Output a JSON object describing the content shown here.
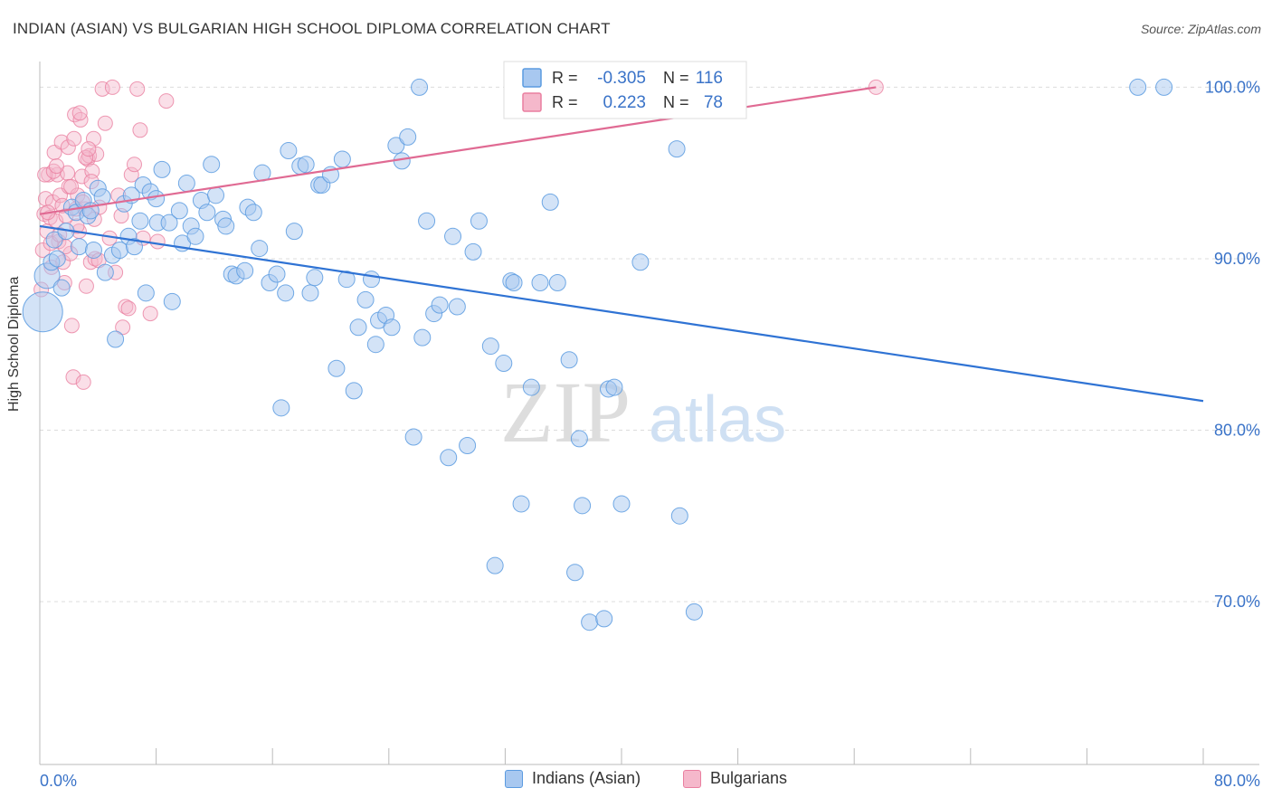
{
  "title": "INDIAN (ASIAN) VS BULGARIAN HIGH SCHOOL DIPLOMA CORRELATION CHART",
  "source": "Source: ZipAtlas.com",
  "watermark": {
    "zip": "ZIP",
    "atlas": "atlas"
  },
  "colors": {
    "blue_fill": "#a8c8f0",
    "blue_stroke": "#5b9be0",
    "blue_line": "#2f73d4",
    "pink_fill": "#f5b8cb",
    "pink_stroke": "#ea7fa0",
    "pink_line": "#e06a93",
    "value_text": "#3a73c8",
    "grid": "#dcdcdc"
  },
  "legend_top": [
    {
      "r_label": "R =",
      "r_value": "-0.305",
      "n_label": "N =",
      "n_value": "116"
    },
    {
      "r_label": "R =",
      "r_value": "0.223",
      "n_label": "N =",
      "n_value": "78"
    }
  ],
  "legend_bottom": [
    "Indians (Asian)",
    "Bulgarians"
  ],
  "chart_data": {
    "type": "scatter",
    "title": "INDIAN (ASIAN) VS BULGARIAN HIGH SCHOOL DIPLOMA CORRELATION CHART",
    "xlabel": "",
    "ylabel": "High School Diploma",
    "x_tick_labels": [
      "0.0%",
      "80.0%"
    ],
    "y_tick_labels": [
      "100.0%",
      "90.0%",
      "80.0%",
      "70.0%"
    ],
    "xlim": [
      0,
      80
    ],
    "ylim": [
      60.5,
      101.5
    ],
    "y_ticks": [
      100,
      90,
      80,
      70
    ],
    "grid": true,
    "legend_position": "top-center",
    "series": [
      {
        "name": "Indians (Asian)",
        "r": -0.305,
        "n": 116,
        "trend": {
          "x": [
            0,
            80
          ],
          "y": [
            91.9,
            81.7
          ]
        },
        "points": [
          [
            0.2,
            86.9
          ],
          [
            0.5,
            89.0
          ],
          [
            0.8,
            89.8
          ],
          [
            1.0,
            91.1
          ],
          [
            1.2,
            90.0
          ],
          [
            1.5,
            88.3
          ],
          [
            1.8,
            91.6
          ],
          [
            2.2,
            93.0
          ],
          [
            2.5,
            92.7
          ],
          [
            2.7,
            90.7
          ],
          [
            3.0,
            93.4
          ],
          [
            3.3,
            92.5
          ],
          [
            3.7,
            90.5
          ],
          [
            4.0,
            94.1
          ],
          [
            4.3,
            93.6
          ],
          [
            4.5,
            89.2
          ],
          [
            5.0,
            90.2
          ],
          [
            5.2,
            85.3
          ],
          [
            5.5,
            90.5
          ],
          [
            5.8,
            93.2
          ],
          [
            6.1,
            91.3
          ],
          [
            6.5,
            90.7
          ],
          [
            6.9,
            92.2
          ],
          [
            7.1,
            94.3
          ],
          [
            7.3,
            88.0
          ],
          [
            7.6,
            93.9
          ],
          [
            8.1,
            92.1
          ],
          [
            8.4,
            95.2
          ],
          [
            8.9,
            92.1
          ],
          [
            9.1,
            87.5
          ],
          [
            9.6,
            92.8
          ],
          [
            9.8,
            90.9
          ],
          [
            10.1,
            94.4
          ],
          [
            10.4,
            91.9
          ],
          [
            10.7,
            91.3
          ],
          [
            11.1,
            93.4
          ],
          [
            11.5,
            92.7
          ],
          [
            11.8,
            95.5
          ],
          [
            12.1,
            93.7
          ],
          [
            12.6,
            92.3
          ],
          [
            12.8,
            91.9
          ],
          [
            13.2,
            89.1
          ],
          [
            13.5,
            89.0
          ],
          [
            14.1,
            89.3
          ],
          [
            14.3,
            93.0
          ],
          [
            14.7,
            92.7
          ],
          [
            15.1,
            90.6
          ],
          [
            15.3,
            95.0
          ],
          [
            15.8,
            88.6
          ],
          [
            16.3,
            89.1
          ],
          [
            16.6,
            81.3
          ],
          [
            16.9,
            88.0
          ],
          [
            17.1,
            96.3
          ],
          [
            17.5,
            91.6
          ],
          [
            17.9,
            95.4
          ],
          [
            18.3,
            95.5
          ],
          [
            18.6,
            88.0
          ],
          [
            18.9,
            88.9
          ],
          [
            19.2,
            94.3
          ],
          [
            19.4,
            94.3
          ],
          [
            20.0,
            94.9
          ],
          [
            20.4,
            83.6
          ],
          [
            20.8,
            95.8
          ],
          [
            21.1,
            88.8
          ],
          [
            21.6,
            82.3
          ],
          [
            21.9,
            86.0
          ],
          [
            22.4,
            87.6
          ],
          [
            22.8,
            88.8
          ],
          [
            23.1,
            85.0
          ],
          [
            23.3,
            86.4
          ],
          [
            23.8,
            86.7
          ],
          [
            24.2,
            86.0
          ],
          [
            24.5,
            96.6
          ],
          [
            24.9,
            95.7
          ],
          [
            25.3,
            97.1
          ],
          [
            25.7,
            79.6
          ],
          [
            26.1,
            100.0
          ],
          [
            26.3,
            85.4
          ],
          [
            26.6,
            92.2
          ],
          [
            27.1,
            86.8
          ],
          [
            27.5,
            87.3
          ],
          [
            28.1,
            78.4
          ],
          [
            28.4,
            91.3
          ],
          [
            29.4,
            79.1
          ],
          [
            29.8,
            90.4
          ],
          [
            30.2,
            92.2
          ],
          [
            31.0,
            84.9
          ],
          [
            31.3,
            72.1
          ],
          [
            31.9,
            83.9
          ],
          [
            32.4,
            88.7
          ],
          [
            32.6,
            88.6
          ],
          [
            33.1,
            75.7
          ],
          [
            33.8,
            82.5
          ],
          [
            34.4,
            88.6
          ],
          [
            35.1,
            93.3
          ],
          [
            35.6,
            88.6
          ],
          [
            36.4,
            84.1
          ],
          [
            36.8,
            71.7
          ],
          [
            37.1,
            79.5
          ],
          [
            37.3,
            75.6
          ],
          [
            37.8,
            68.8
          ],
          [
            38.1,
            100.0
          ],
          [
            38.8,
            69.0
          ],
          [
            39.1,
            82.4
          ],
          [
            39.5,
            82.5
          ],
          [
            40.0,
            75.7
          ],
          [
            41.3,
            89.8
          ],
          [
            43.8,
            96.4
          ],
          [
            44.0,
            75.0
          ],
          [
            45.0,
            69.4
          ],
          [
            75.5,
            100.0
          ],
          [
            77.3,
            100.0
          ],
          [
            8.0,
            93.5
          ],
          [
            6.3,
            93.7
          ],
          [
            28.7,
            87.2
          ],
          [
            3.5,
            92.8
          ]
        ]
      },
      {
        "name": "Bulgarians",
        "r": 0.223,
        "n": 78,
        "trend": {
          "x": [
            0,
            57.5
          ],
          "y": [
            92.6,
            100.0
          ]
        },
        "points": [
          [
            0.1,
            88.2
          ],
          [
            0.2,
            90.5
          ],
          [
            0.3,
            92.6
          ],
          [
            0.4,
            93.5
          ],
          [
            0.5,
            91.6
          ],
          [
            0.6,
            94.9
          ],
          [
            0.7,
            92.4
          ],
          [
            0.8,
            89.5
          ],
          [
            0.9,
            93.3
          ],
          [
            1.0,
            96.2
          ],
          [
            1.1,
            92.2
          ],
          [
            1.2,
            94.9
          ],
          [
            1.3,
            91.0
          ],
          [
            1.4,
            93.7
          ],
          [
            1.5,
            96.8
          ],
          [
            1.6,
            89.8
          ],
          [
            1.7,
            88.6
          ],
          [
            1.8,
            92.5
          ],
          [
            1.9,
            95.0
          ],
          [
            2.0,
            94.2
          ],
          [
            2.1,
            90.3
          ],
          [
            2.2,
            86.1
          ],
          [
            2.3,
            83.1
          ],
          [
            2.4,
            98.4
          ],
          [
            2.5,
            92.9
          ],
          [
            2.6,
            93.7
          ],
          [
            2.7,
            91.6
          ],
          [
            2.8,
            98.1
          ],
          [
            2.9,
            94.8
          ],
          [
            3.0,
            82.8
          ],
          [
            3.1,
            92.9
          ],
          [
            3.2,
            88.4
          ],
          [
            3.3,
            95.8
          ],
          [
            3.4,
            96.0
          ],
          [
            3.5,
            89.8
          ],
          [
            3.6,
            95.1
          ],
          [
            3.7,
            97.0
          ],
          [
            3.8,
            90.0
          ],
          [
            3.9,
            96.1
          ],
          [
            4.1,
            93.0
          ],
          [
            4.3,
            99.9
          ],
          [
            4.5,
            97.9
          ],
          [
            4.8,
            91.2
          ],
          [
            5.0,
            100.0
          ],
          [
            5.2,
            89.2
          ],
          [
            5.4,
            93.7
          ],
          [
            5.6,
            92.5
          ],
          [
            5.7,
            86.0
          ],
          [
            5.9,
            87.2
          ],
          [
            6.1,
            87.1
          ],
          [
            6.3,
            94.9
          ],
          [
            6.5,
            95.5
          ],
          [
            6.7,
            99.9
          ],
          [
            6.9,
            97.5
          ],
          [
            7.1,
            91.2
          ],
          [
            7.6,
            86.8
          ],
          [
            8.1,
            91.0
          ],
          [
            8.7,
            99.2
          ],
          [
            0.35,
            94.9
          ],
          [
            0.55,
            92.7
          ],
          [
            0.75,
            90.9
          ],
          [
            0.95,
            95.1
          ],
          [
            1.15,
            95.4
          ],
          [
            1.35,
            91.4
          ],
          [
            1.55,
            93.1
          ],
          [
            1.75,
            90.7
          ],
          [
            1.95,
            96.5
          ],
          [
            2.15,
            94.2
          ],
          [
            2.35,
            97.0
          ],
          [
            2.55,
            91.9
          ],
          [
            2.75,
            98.5
          ],
          [
            2.95,
            93.3
          ],
          [
            3.15,
            95.9
          ],
          [
            3.35,
            96.4
          ],
          [
            3.55,
            94.5
          ],
          [
            3.75,
            92.3
          ],
          [
            4.05,
            89.9
          ],
          [
            57.5,
            100.0
          ]
        ]
      }
    ]
  }
}
